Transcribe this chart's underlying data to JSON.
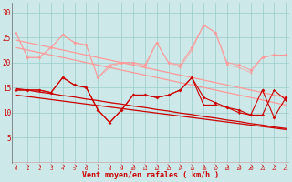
{
  "x": [
    0,
    1,
    2,
    3,
    4,
    5,
    6,
    7,
    8,
    9,
    10,
    11,
    12,
    13,
    14,
    15,
    16,
    17,
    18,
    19,
    20,
    21,
    22,
    23
  ],
  "line_rafales_pink": [
    26,
    21,
    21,
    23,
    25.5,
    24,
    23.5,
    17,
    19.5,
    20,
    20,
    19.5,
    24,
    20,
    19.5,
    23,
    27.5,
    26,
    20,
    19.5,
    18.5,
    21,
    21.5,
    21.5
  ],
  "line_moy_pink": [
    null,
    null,
    null,
    null,
    null,
    null,
    null,
    null,
    null,
    null,
    null,
    null,
    null,
    null,
    null,
    null,
    null,
    null,
    null,
    null,
    null,
    null,
    null,
    null
  ],
  "line_pink_extra": [
    26,
    21,
    21,
    23,
    25.5,
    24,
    23.5,
    17,
    19,
    20,
    20,
    19,
    24,
    20,
    19,
    22.5,
    27.5,
    26,
    19.5,
    19,
    18,
    21,
    21.5,
    21.5
  ],
  "trend_pink_1": [
    24.5,
    24.0,
    23.5,
    23.0,
    22.5,
    22.0,
    21.5,
    21.0,
    20.5,
    20.0,
    19.5,
    19.0,
    18.5,
    18.0,
    17.5,
    17.0,
    16.5,
    16.0,
    15.5,
    15.0,
    14.5,
    14.0,
    13.5,
    13.0
  ],
  "trend_pink_2": [
    23.0,
    22.5,
    22.0,
    21.5,
    21.0,
    20.5,
    20.0,
    19.5,
    19.0,
    18.5,
    18.0,
    17.5,
    17.0,
    16.5,
    16.0,
    15.5,
    15.0,
    14.5,
    14.0,
    13.5,
    13.0,
    12.5,
    12.0,
    11.5
  ],
  "line_dark_moy": [
    14.5,
    14.5,
    14.5,
    14,
    17,
    15.5,
    15,
    10.5,
    8,
    10.5,
    13.5,
    13.5,
    13,
    13.5,
    14.5,
    17,
    13,
    12,
    11,
    10.5,
    9.5,
    14.5,
    9,
    13
  ],
  "line_dark_raf": [
    14.5,
    14.5,
    14.5,
    14,
    17,
    15.5,
    15,
    10.5,
    8,
    10.5,
    13.5,
    13.5,
    13,
    13.5,
    14.5,
    17,
    11.5,
    11.5,
    11,
    10,
    9.5,
    9.5,
    14.5,
    12.5
  ],
  "trend_dark_1": [
    14.8,
    14.5,
    14.1,
    13.8,
    13.4,
    13.1,
    12.7,
    12.4,
    12.0,
    11.7,
    11.3,
    11.0,
    10.6,
    10.3,
    9.9,
    9.6,
    9.2,
    8.9,
    8.5,
    8.2,
    7.8,
    7.5,
    7.1,
    6.8
  ],
  "trend_dark_2": [
    13.5,
    13.2,
    12.9,
    12.6,
    12.3,
    12.0,
    11.7,
    11.4,
    11.1,
    10.8,
    10.5,
    10.2,
    9.9,
    9.6,
    9.3,
    9.0,
    8.7,
    8.4,
    8.1,
    7.8,
    7.5,
    7.2,
    6.9,
    6.6
  ],
  "bg_color": "#cce8e8",
  "grid_color": "#99cccc",
  "color_pink": "#ff9999",
  "color_dark": "#cc0000",
  "xlabel": "Vent moyen/en rafales ( km/h )",
  "ylim": [
    0,
    32
  ],
  "yticks": [
    5,
    10,
    15,
    20,
    25,
    30
  ],
  "xlim": [
    -0.3,
    23.3
  ]
}
